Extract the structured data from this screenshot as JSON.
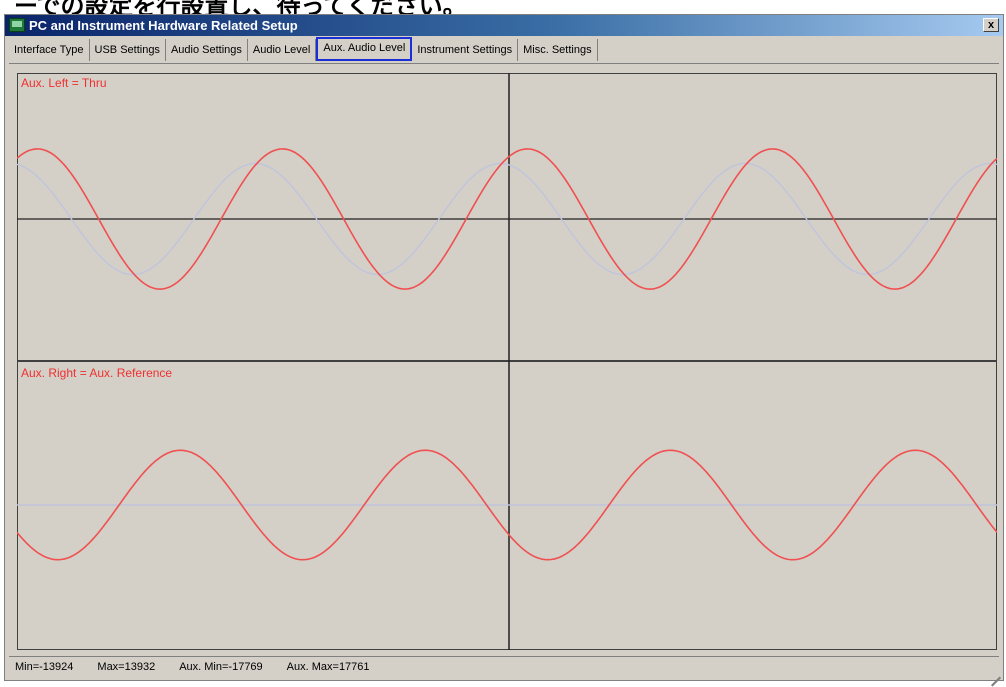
{
  "header": {
    "partial_text": "ーでの設定を行設置し、待ってください。"
  },
  "window": {
    "title": "PC and Instrument Hardware Related Setup",
    "close_label": "x"
  },
  "tabs": [
    {
      "label": "Interface Type",
      "active": false
    },
    {
      "label": "USB Settings",
      "active": false
    },
    {
      "label": "Audio Settings",
      "active": false
    },
    {
      "label": "Audio Level",
      "active": false
    },
    {
      "label": "Aux. Audio Level",
      "active": true
    },
    {
      "label": "Instrument Settings",
      "active": false
    },
    {
      "label": "Misc. Settings",
      "active": false
    }
  ],
  "colors": {
    "accent_highlight": "#1a2fd6",
    "trace_red": "#f05050",
    "trace_light": "#c0c4dc",
    "grid": "#000000",
    "background": "#d4d0c8"
  },
  "chart_data": [
    {
      "type": "line",
      "title": "Aux. Left = Thru",
      "ylim": [
        -1,
        1
      ],
      "x": [
        0,
        1
      ],
      "series": [
        {
          "name": "",
          "color": "#f05050",
          "amplitude": 0.48,
          "cycles": 4,
          "phase_deg": 60
        },
        {
          "name": "",
          "color": "#c0c4dc",
          "amplitude": 0.38,
          "cycles": 4,
          "phase_deg": 100
        }
      ]
    },
    {
      "type": "line",
      "title": "Aux. Right = Aux. Reference",
      "ylim": [
        -1,
        1
      ],
      "x": [
        0,
        1
      ],
      "series": [
        {
          "name": "",
          "color": "#f05050",
          "amplitude": 0.38,
          "cycles": 4,
          "phase_deg": 210
        },
        {
          "name": "",
          "color": "#c0c4dc",
          "amplitude": 0.0,
          "cycles": 4,
          "phase_deg": 0
        }
      ]
    }
  ],
  "status": {
    "min": "Min=-13924",
    "max": "Max=13932",
    "aux_min": "Aux. Min=-17769",
    "aux_max": "Aux. Max=17761"
  }
}
